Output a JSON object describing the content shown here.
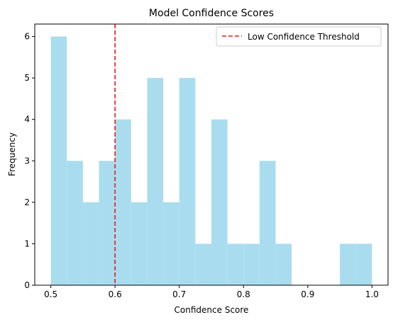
{
  "chart_data": {
    "type": "bar",
    "title": "Model Confidence Scores",
    "xlabel": "Confidence Score",
    "ylabel": "Frequency",
    "bin_width": 0.025,
    "bins": [
      {
        "x0": 0.5,
        "x1": 0.525,
        "count": 6
      },
      {
        "x0": 0.525,
        "x1": 0.55,
        "count": 3
      },
      {
        "x0": 0.55,
        "x1": 0.575,
        "count": 2
      },
      {
        "x0": 0.575,
        "x1": 0.6,
        "count": 3
      },
      {
        "x0": 0.6,
        "x1": 0.625,
        "count": 4
      },
      {
        "x0": 0.625,
        "x1": 0.65,
        "count": 2
      },
      {
        "x0": 0.65,
        "x1": 0.675,
        "count": 5
      },
      {
        "x0": 0.675,
        "x1": 0.7,
        "count": 2
      },
      {
        "x0": 0.7,
        "x1": 0.725,
        "count": 5
      },
      {
        "x0": 0.725,
        "x1": 0.75,
        "count": 1
      },
      {
        "x0": 0.75,
        "x1": 0.775,
        "count": 4
      },
      {
        "x0": 0.775,
        "x1": 0.8,
        "count": 1
      },
      {
        "x0": 0.8,
        "x1": 0.825,
        "count": 1
      },
      {
        "x0": 0.825,
        "x1": 0.85,
        "count": 3
      },
      {
        "x0": 0.85,
        "x1": 0.875,
        "count": 1
      },
      {
        "x0": 0.875,
        "x1": 0.9,
        "count": 0
      },
      {
        "x0": 0.9,
        "x1": 0.925,
        "count": 0
      },
      {
        "x0": 0.925,
        "x1": 0.95,
        "count": 0
      },
      {
        "x0": 0.95,
        "x1": 0.975,
        "count": 1
      },
      {
        "x0": 0.975,
        "x1": 1.0,
        "count": 1
      }
    ],
    "xlim": [
      0.475,
      1.025
    ],
    "ylim": [
      0,
      6.3
    ],
    "xticks": [
      0.5,
      0.6,
      0.7,
      0.8,
      0.9,
      1.0
    ],
    "xtick_labels": [
      "0.5",
      "0.6",
      "0.7",
      "0.8",
      "0.9",
      "1.0"
    ],
    "yticks": [
      0,
      1,
      2,
      3,
      4,
      5,
      6
    ],
    "ytick_labels": [
      "0",
      "1",
      "2",
      "3",
      "4",
      "5",
      "6"
    ],
    "threshold": {
      "x": 0.6,
      "label": "Low Confidence Threshold",
      "color": "#e41a1c",
      "style": "dashed"
    },
    "bar_color": "#aadcef",
    "grid": false,
    "legend_position": "top-right"
  }
}
